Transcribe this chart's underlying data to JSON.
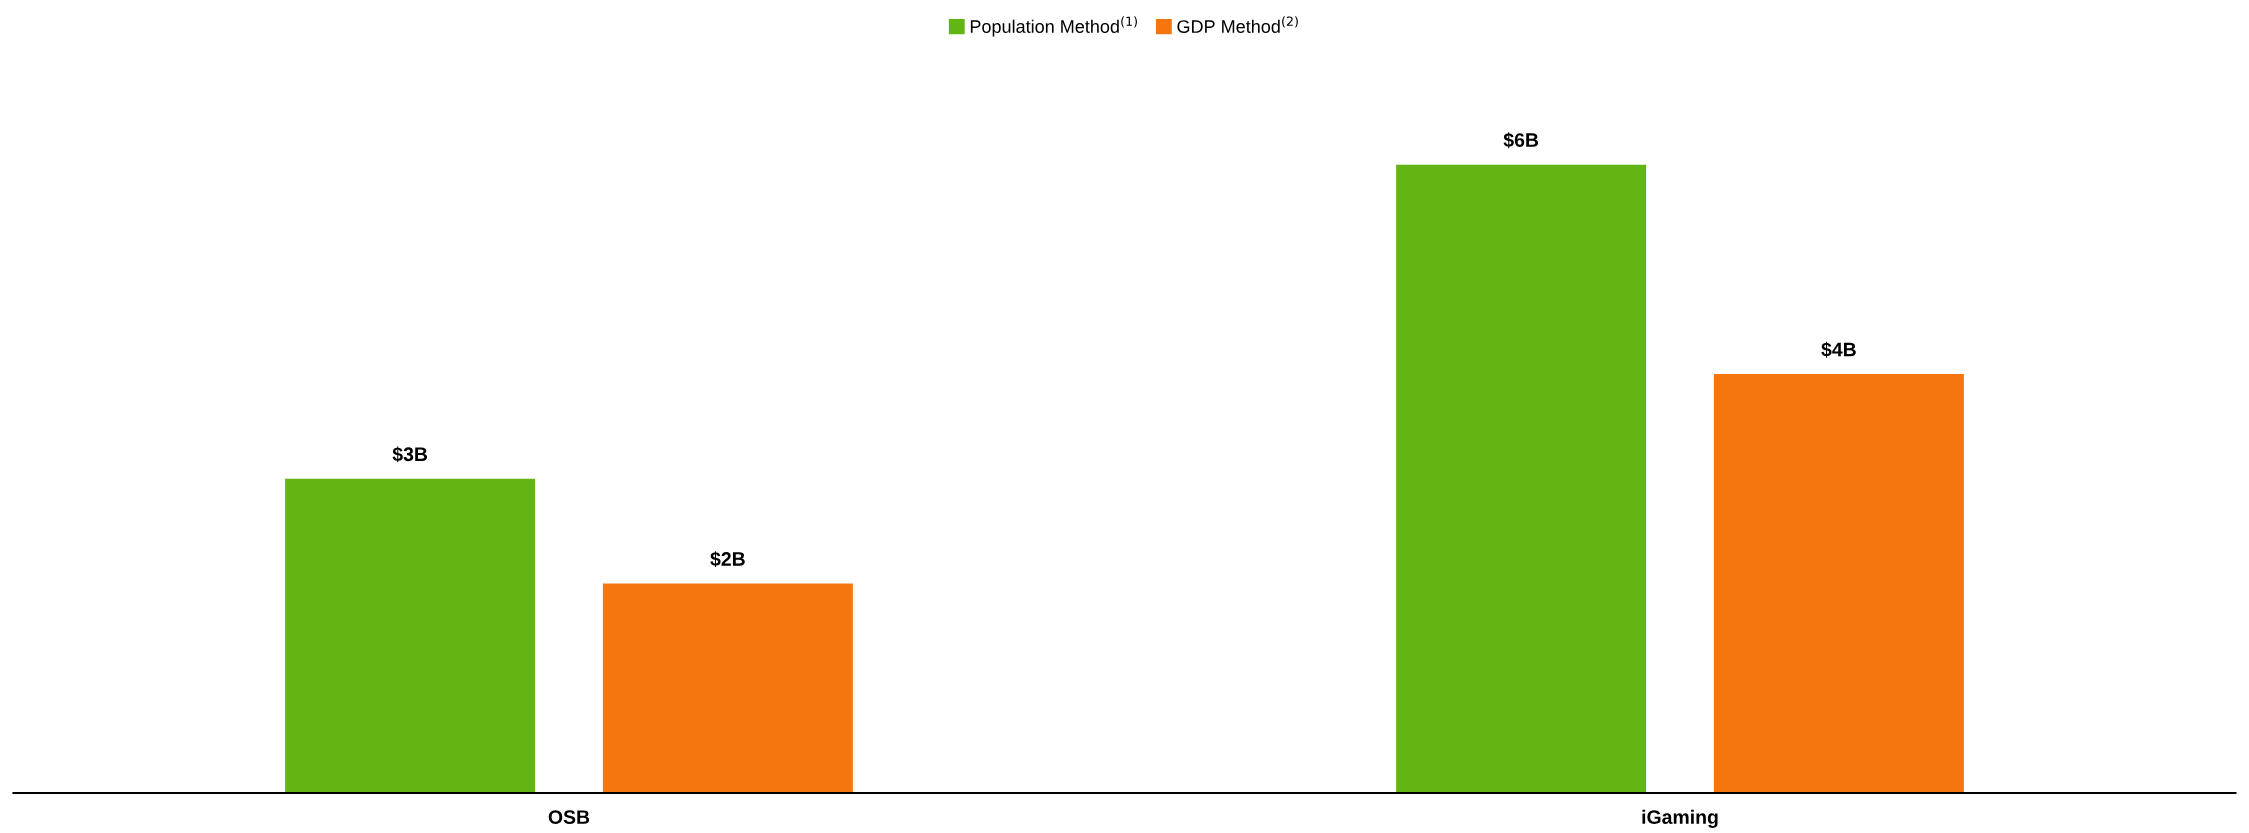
{
  "chart_data": {
    "type": "bar",
    "categories": [
      "OSB",
      "iGaming"
    ],
    "series": [
      {
        "name": "Population Method$^{(1)}$",
        "color": "#62b513",
        "values": [
          3,
          6
        ],
        "value_labels": [
          "$3B",
          "$6B"
        ]
      },
      {
        "name": "GDP Method$^{(2)}$",
        "color": "#f5760f",
        "values": [
          2,
          4
        ],
        "value_labels": [
          "$2B",
          "$4B"
        ]
      }
    ],
    "legend": "top",
    "grid": false
  }
}
